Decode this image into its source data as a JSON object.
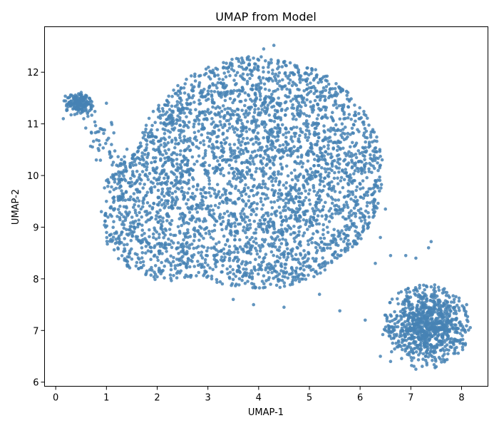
{
  "chart_data": {
    "type": "scatter",
    "title": "UMAP from Model",
    "xlabel": "UMAP-1",
    "ylabel": "UMAP-2",
    "xlim": [
      -0.22,
      8.52
    ],
    "ylim": [
      5.92,
      12.88
    ],
    "xticks": [
      0,
      1,
      2,
      3,
      4,
      5,
      6,
      7,
      8
    ],
    "yticks": [
      6,
      7,
      8,
      9,
      10,
      11,
      12
    ],
    "grid": false,
    "legend": "none",
    "marker_color": "#4682b4",
    "marker_alpha": 0.85,
    "series": [
      {
        "clusters": [
          {
            "region": "main-body",
            "center": [
              3.8,
              10.0
            ],
            "spread_x": [
              0.9,
              6.6
            ],
            "spread_y": [
              7.4,
              12.6
            ],
            "approx_points": 3600
          },
          {
            "region": "upper-left-blob",
            "center": [
              0.45,
              11.4
            ],
            "spread_x": [
              0.1,
              0.7
            ],
            "spread_y": [
              11.05,
              11.62
            ],
            "approx_points": 170
          },
          {
            "region": "lower-right-blob",
            "center": [
              7.3,
              7.1
            ],
            "spread_x": [
              6.4,
              8.2
            ],
            "spread_y": [
              6.25,
              8.75
            ],
            "approx_points": 900
          }
        ],
        "points": [
          [
            0.3,
            11.38
          ],
          [
            0.52,
            11.5
          ],
          [
            0.42,
            11.2
          ],
          [
            0.6,
            11.45
          ],
          [
            0.15,
            11.1
          ],
          [
            0.7,
            11.3
          ],
          [
            1.0,
            11.4
          ],
          [
            0.9,
            10.9
          ],
          [
            1.1,
            10.6
          ],
          [
            0.8,
            10.3
          ],
          [
            1.2,
            10.2
          ],
          [
            1.0,
            9.9
          ],
          [
            4.3,
            12.52
          ],
          [
            4.1,
            12.45
          ],
          [
            3.8,
            12.3
          ],
          [
            5.6,
            11.7
          ],
          [
            6.0,
            11.1
          ],
          [
            6.2,
            10.4
          ],
          [
            6.3,
            9.9
          ],
          [
            6.5,
            9.35
          ],
          [
            6.4,
            8.8
          ],
          [
            6.6,
            8.45
          ],
          [
            6.3,
            8.3
          ],
          [
            5.2,
            7.7
          ],
          [
            4.5,
            7.45
          ],
          [
            3.9,
            7.5
          ],
          [
            3.5,
            7.6
          ],
          [
            1.0,
            9.5
          ],
          [
            0.9,
            9.3
          ],
          [
            1.3,
            8.9
          ],
          [
            7.4,
            8.72
          ],
          [
            7.35,
            8.6
          ],
          [
            7.1,
            8.4
          ],
          [
            6.9,
            8.45
          ],
          [
            8.1,
            7.5
          ],
          [
            8.05,
            7.0
          ],
          [
            7.1,
            6.25
          ],
          [
            7.5,
            6.3
          ],
          [
            6.6,
            6.4
          ],
          [
            6.4,
            6.5
          ],
          [
            5.6,
            7.38
          ],
          [
            6.1,
            7.2
          ]
        ]
      }
    ]
  }
}
